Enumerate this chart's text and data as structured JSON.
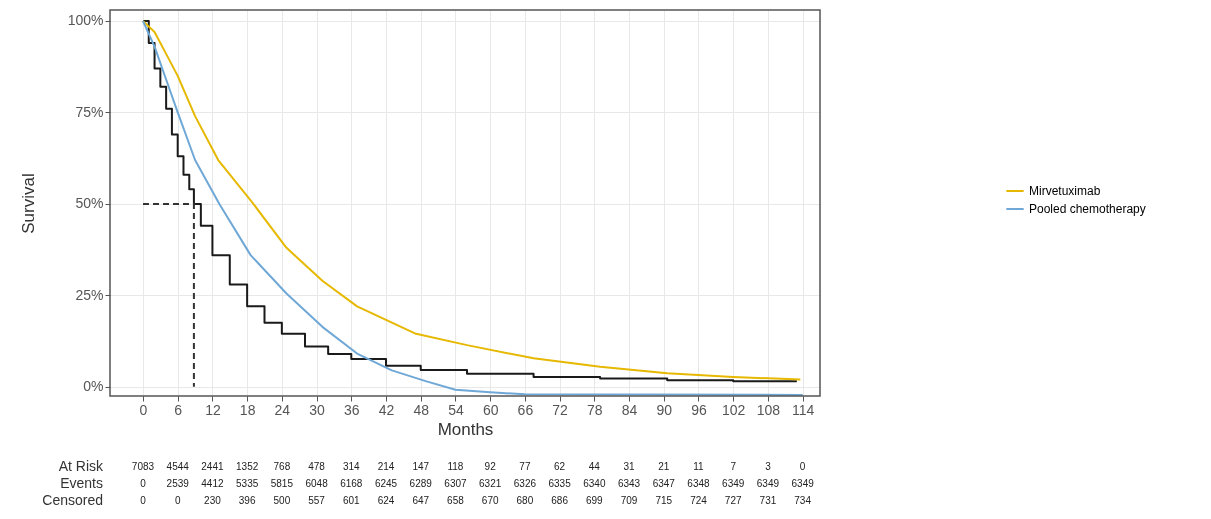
{
  "chart_data": {
    "type": "line",
    "xlabel": "Months",
    "ylabel": "Survival",
    "xlim": [
      -5.7,
      117
    ],
    "xticks": [
      0,
      6,
      12,
      18,
      24,
      30,
      36,
      42,
      48,
      54,
      60,
      66,
      72,
      78,
      84,
      90,
      96,
      102,
      108,
      114
    ],
    "ylim": [
      -2.5,
      103
    ],
    "yticks": [
      {
        "value": 0,
        "label": "0%"
      },
      {
        "value": 25,
        "label": "25%"
      },
      {
        "value": 50,
        "label": "50%"
      },
      {
        "value": 75,
        "label": "75%"
      },
      {
        "value": 100,
        "label": "100%"
      }
    ],
    "grid": true,
    "legend": "right",
    "marker": "none",
    "series": [
      {
        "type": "step",
        "color": "#1a1a1a",
        "x": [
          0,
          1,
          2,
          3,
          4,
          5,
          6,
          7,
          8,
          8.8,
          10,
          12,
          15,
          18,
          21,
          24,
          28,
          32,
          36,
          42,
          48,
          56,
          67.5,
          79,
          90.6,
          102,
          113
        ],
        "values": [
          100,
          94,
          87,
          82,
          76,
          69,
          63,
          58,
          54,
          50,
          44,
          36,
          28,
          22,
          17.5,
          14.5,
          11,
          9,
          7.6,
          5.8,
          4.6,
          3.6,
          2.7,
          2.3,
          1.8,
          1.5,
          1.5
        ]
      },
      {
        "name": "Mirvetuximab",
        "color": "#e6b800",
        "x": [
          0,
          2,
          4,
          6,
          9,
          13,
          18.6,
          24.8,
          31,
          37,
          47,
          56,
          67.5,
          79,
          90.6,
          102,
          113.6
        ],
        "values": [
          100,
          97,
          91,
          85,
          74,
          62,
          51,
          38,
          29,
          22,
          14.6,
          11.4,
          7.8,
          5.5,
          3.7,
          2.7,
          2
        ]
      },
      {
        "name": "Pooled chemotherapy",
        "color": "#6fa8d6",
        "x": [
          0,
          2,
          4,
          6,
          9,
          13.2,
          18.6,
          24.8,
          31,
          37,
          43,
          49,
          54,
          60,
          66,
          114
        ],
        "values": [
          100,
          93,
          84,
          75,
          62,
          50,
          36,
          25.5,
          16.4,
          9.1,
          4.5,
          1.5,
          -0.8,
          -1.5,
          -2,
          -2.2
        ]
      },
      {
        "color": "#333333",
        "line_style": "dashed",
        "x": [
          0,
          8.8,
          8.8
        ],
        "values": [
          50,
          50,
          0
        ]
      }
    ],
    "annotations": [
      "At Risk",
      "7083",
      "4544",
      "2441",
      "1352",
      "768",
      "478",
      "314",
      "214",
      "147",
      "118",
      "92",
      "77",
      "62",
      "44",
      "31",
      "21",
      "11",
      "7",
      "3",
      "0",
      "Events",
      "0",
      "2539",
      "4412",
      "5335",
      "5815",
      "6048",
      "6168",
      "6245",
      "6289",
      "6307",
      "6321",
      "6326",
      "6335",
      "6340",
      "6343",
      "6347",
      "6348",
      "6349",
      "6349",
      "6349",
      "Censored",
      "0",
      "0",
      "230",
      "396",
      "500",
      "557",
      "601",
      "624",
      "647",
      "658",
      "670",
      "680",
      "686",
      "699",
      "709",
      "715",
      "724",
      "727",
      "731",
      "734"
    ]
  }
}
